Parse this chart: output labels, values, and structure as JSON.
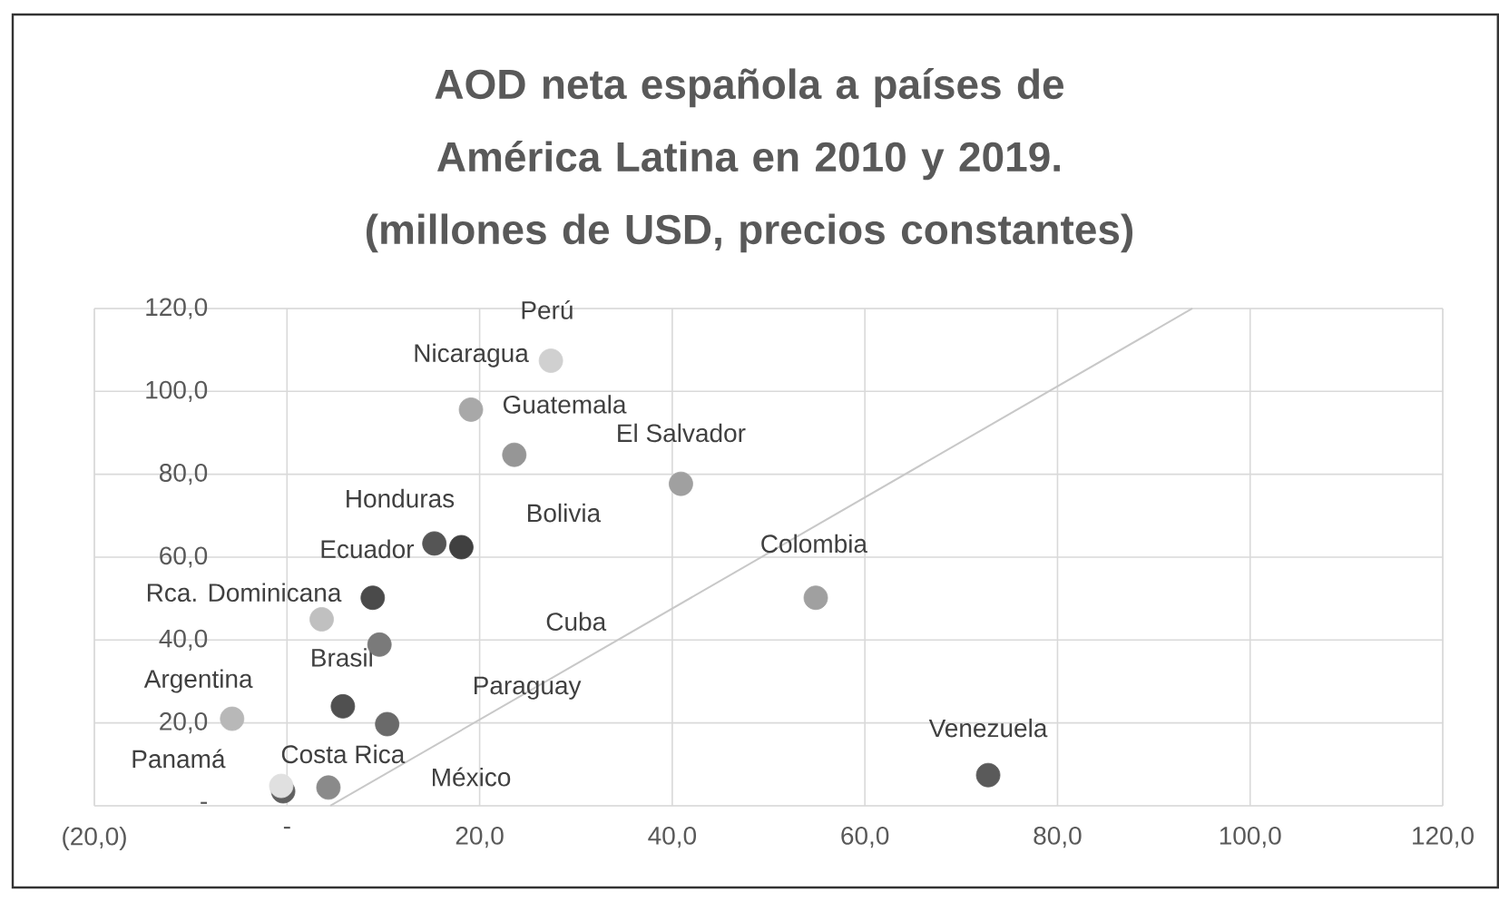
{
  "chart_data": {
    "type": "scatter",
    "title": "AOD neta española a países de América Latina en 2010 y 2019. (millones de USD, precios constantes)",
    "xlim": [
      -20,
      120
    ],
    "xticks": [
      {
        "value": -20,
        "label": "(20,0)"
      },
      {
        "value": 0,
        "label": "-"
      },
      {
        "value": 20,
        "label": "20,0"
      },
      {
        "value": 40,
        "label": "40,0"
      },
      {
        "value": 60,
        "label": "60,0"
      },
      {
        "value": 80,
        "label": "80,0"
      },
      {
        "value": 100,
        "label": "100,0"
      },
      {
        "value": 120,
        "label": "120,0"
      }
    ],
    "ylim": [
      0,
      120
    ],
    "yticks": [
      {
        "value": 0,
        "label": "-"
      },
      {
        "value": 20,
        "label": "20,0"
      },
      {
        "value": 40,
        "label": "40,0"
      },
      {
        "value": 60,
        "label": "60,0"
      },
      {
        "value": 80,
        "label": "80,0"
      },
      {
        "value": 100,
        "label": "100,0"
      },
      {
        "value": 120,
        "label": "120,0"
      }
    ],
    "grid": true,
    "series": [
      {
        "x": [
          27.4,
          19.1,
          23.6,
          40.9,
          15.3,
          18.1,
          8.9,
          3.6,
          9.6,
          -5.7,
          5.8,
          10.4,
          -0.4,
          -0.6,
          4.3,
          54.9,
          72.8
        ],
        "values": [
          107.4,
          95.6,
          84.7,
          77.7,
          63.3,
          62.4,
          50.2,
          45.0,
          38.9,
          21.0,
          24.0,
          19.7,
          3.5,
          4.8,
          4.4,
          50.2,
          7.4
        ],
        "colors": [
          "#d0d0d0",
          "#a8a8a8",
          "#969696",
          "#a0a0a0",
          "#555555",
          "#404040",
          "#4a4a4a",
          "#c0c0c0",
          "#7a7a7a",
          "#b8b8b8",
          "#505050",
          "#6a6a6a",
          "#606060",
          "#e0e0e0",
          "#8a8a8a",
          "#a0a0a0",
          "#5a5a5a"
        ]
      },
      {
        "type": "line",
        "x": [
          4.5,
          94
        ],
        "values": [
          0,
          120
        ],
        "color": "#c8c8c8"
      }
    ],
    "annotations": [
      "Perú",
      "Nicaragua",
      "Guatemala",
      "El Salvador",
      "Honduras",
      "Bolivia",
      "Ecuador",
      "Colombia",
      "Rca. Dominicana",
      "Cuba",
      "Brasil",
      "Argentina",
      "Paraguay",
      "Costa Rica",
      "Panamá",
      "México",
      "Venezuela"
    ]
  }
}
